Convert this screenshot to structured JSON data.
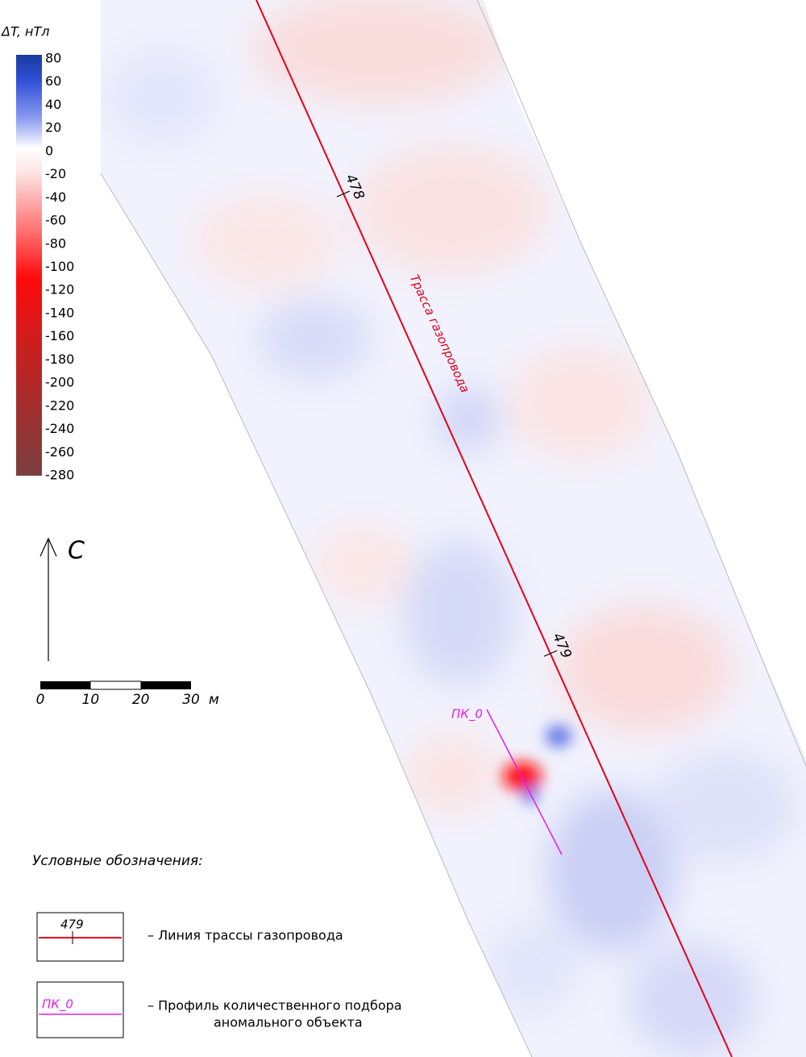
{
  "colorbar": {
    "title": "ΔT, нТл",
    "ticks": [
      80,
      60,
      40,
      20,
      0,
      -20,
      -40,
      -60,
      -80,
      -100,
      -120,
      -140,
      -160,
      -180,
      -200,
      -220,
      -240,
      -260,
      -280
    ]
  },
  "north": {
    "label": "С"
  },
  "scale_bar": {
    "ticks": [
      0,
      10,
      20,
      30
    ],
    "unit": "м"
  },
  "map": {
    "route_label": "Трасса газопровода",
    "pickets": [
      478,
      479
    ],
    "profile_label": "ПК_0"
  },
  "legend": {
    "title": "Условные обозначения:",
    "items": [
      {
        "sample": 479,
        "lines": [
          "– Линия трассы газопровода"
        ]
      },
      {
        "sample": "ПК_0",
        "lines": [
          "– Профиль количественного подбора",
          "аномального объекта"
        ]
      }
    ]
  }
}
